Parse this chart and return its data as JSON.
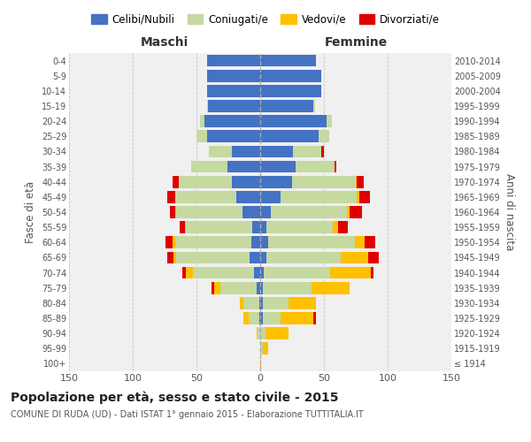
{
  "age_groups": [
    "100+",
    "95-99",
    "90-94",
    "85-89",
    "80-84",
    "75-79",
    "70-74",
    "65-69",
    "60-64",
    "55-59",
    "50-54",
    "45-49",
    "40-44",
    "35-39",
    "30-34",
    "25-29",
    "20-24",
    "15-19",
    "10-14",
    "5-9",
    "0-4"
  ],
  "birth_years": [
    "≤ 1914",
    "1915-1919",
    "1920-1924",
    "1925-1929",
    "1930-1934",
    "1935-1939",
    "1940-1944",
    "1945-1949",
    "1950-1954",
    "1955-1959",
    "1960-1964",
    "1965-1969",
    "1970-1974",
    "1975-1979",
    "1980-1984",
    "1985-1989",
    "1990-1994",
    "1995-1999",
    "2000-2004",
    "2005-2009",
    "2010-2014"
  ],
  "colors": {
    "celibi": "#4472c4",
    "coniugati": "#c5d9a0",
    "vedovi": "#ffc000",
    "divorziati": "#e00000"
  },
  "maschi": {
    "celibi": [
      0,
      0,
      0,
      1,
      1,
      3,
      5,
      8,
      7,
      6,
      14,
      19,
      22,
      26,
      22,
      42,
      44,
      41,
      42,
      42,
      42
    ],
    "coniugati": [
      0,
      0,
      2,
      8,
      12,
      28,
      48,
      58,
      60,
      52,
      52,
      48,
      42,
      28,
      18,
      8,
      3,
      1,
      0,
      0,
      0
    ],
    "vedovi": [
      0,
      0,
      1,
      4,
      3,
      5,
      5,
      2,
      2,
      1,
      1,
      0,
      0,
      0,
      0,
      0,
      0,
      0,
      0,
      0,
      0
    ],
    "divorziati": [
      0,
      0,
      0,
      0,
      0,
      2,
      3,
      5,
      5,
      4,
      4,
      6,
      5,
      0,
      0,
      0,
      0,
      0,
      0,
      0,
      0
    ]
  },
  "femmine": {
    "celibi": [
      0,
      0,
      0,
      2,
      2,
      2,
      3,
      5,
      6,
      5,
      8,
      16,
      25,
      28,
      26,
      46,
      52,
      42,
      48,
      48,
      44
    ],
    "coniugati": [
      0,
      2,
      4,
      14,
      20,
      38,
      52,
      58,
      68,
      52,
      60,
      60,
      50,
      30,
      22,
      8,
      4,
      1,
      0,
      0,
      0
    ],
    "vedovi": [
      1,
      4,
      18,
      26,
      22,
      30,
      32,
      22,
      8,
      4,
      2,
      2,
      1,
      0,
      0,
      0,
      0,
      0,
      0,
      0,
      0
    ],
    "divorziati": [
      0,
      0,
      0,
      2,
      0,
      0,
      2,
      8,
      8,
      8,
      10,
      8,
      5,
      2,
      2,
      0,
      0,
      0,
      0,
      0,
      0
    ]
  },
  "title": "Popolazione per età, sesso e stato civile - 2015",
  "subtitle": "COMUNE DI RUDA (UD) - Dati ISTAT 1° gennaio 2015 - Elaborazione TUTTITALIA.IT",
  "xlabel_left": "Maschi",
  "xlabel_right": "Femmine",
  "ylabel_left": "Fasce di età",
  "ylabel_right": "Anni di nascita",
  "xlim": 150,
  "legend_labels": [
    "Celibi/Nubili",
    "Coniugati/e",
    "Vedovi/e",
    "Divorziati/e"
  ],
  "background_color": "#f0f0f0"
}
